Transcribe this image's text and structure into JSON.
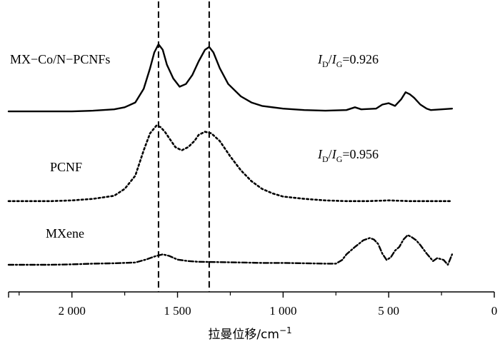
{
  "chart_data": {
    "type": "line",
    "title": "",
    "xlabel": "拉曼位移/cm",
    "xlabel_sup": "−1",
    "ylabel": "",
    "xlim": [
      2300,
      0
    ],
    "x_reversed": true,
    "xticks": [
      {
        "value": 2000,
        "label": "2 000"
      },
      {
        "value": 1500,
        "label": "1 500"
      },
      {
        "value": 1000,
        "label": "1 000"
      },
      {
        "value": 500,
        "label": "5 00"
      },
      {
        "value": 0,
        "label": "0"
      }
    ],
    "reference_lines": [
      1590,
      1350
    ],
    "grid": false,
    "annotations": [
      {
        "series": "MX−Co/N−PCNFs",
        "prefix": "I",
        "sub1": "D",
        "slash": "/",
        "prefix2": "I",
        "sub2": "G",
        "text": "=0.926"
      },
      {
        "series": "PCNF",
        "prefix": "I",
        "sub1": "D",
        "slash": "/",
        "prefix2": "I",
        "sub2": "G",
        "text": "=0.956"
      }
    ],
    "series": [
      {
        "name": "MX−Co/N−PCNFs",
        "style": "solid",
        "points": [
          [
            2300,
            0.02
          ],
          [
            2200,
            0.02
          ],
          [
            2100,
            0.02
          ],
          [
            2000,
            0.02
          ],
          [
            1900,
            0.03
          ],
          [
            1800,
            0.05
          ],
          [
            1750,
            0.08
          ],
          [
            1700,
            0.15
          ],
          [
            1660,
            0.35
          ],
          [
            1630,
            0.65
          ],
          [
            1610,
            0.88
          ],
          [
            1590,
            1.0
          ],
          [
            1570,
            0.92
          ],
          [
            1550,
            0.7
          ],
          [
            1520,
            0.5
          ],
          [
            1490,
            0.38
          ],
          [
            1460,
            0.42
          ],
          [
            1430,
            0.55
          ],
          [
            1400,
            0.75
          ],
          [
            1370,
            0.92
          ],
          [
            1350,
            0.96
          ],
          [
            1330,
            0.88
          ],
          [
            1300,
            0.65
          ],
          [
            1260,
            0.42
          ],
          [
            1200,
            0.24
          ],
          [
            1150,
            0.15
          ],
          [
            1100,
            0.1
          ],
          [
            1000,
            0.06
          ],
          [
            900,
            0.04
          ],
          [
            800,
            0.03
          ],
          [
            700,
            0.04
          ],
          [
            660,
            0.08
          ],
          [
            630,
            0.05
          ],
          [
            560,
            0.06
          ],
          [
            530,
            0.12
          ],
          [
            500,
            0.14
          ],
          [
            470,
            0.1
          ],
          [
            440,
            0.2
          ],
          [
            420,
            0.3
          ],
          [
            400,
            0.27
          ],
          [
            380,
            0.22
          ],
          [
            350,
            0.12
          ],
          [
            320,
            0.06
          ],
          [
            300,
            0.04
          ],
          [
            250,
            0.05
          ],
          [
            200,
            0.06
          ]
        ]
      },
      {
        "name": "PCNF",
        "style": "dotted",
        "points": [
          [
            2300,
            0.02
          ],
          [
            2200,
            0.02
          ],
          [
            2100,
            0.02
          ],
          [
            2000,
            0.03
          ],
          [
            1900,
            0.05
          ],
          [
            1800,
            0.09
          ],
          [
            1750,
            0.18
          ],
          [
            1700,
            0.35
          ],
          [
            1660,
            0.68
          ],
          [
            1630,
            0.9
          ],
          [
            1600,
            1.0
          ],
          [
            1580,
            0.98
          ],
          [
            1560,
            0.92
          ],
          [
            1540,
            0.84
          ],
          [
            1510,
            0.72
          ],
          [
            1480,
            0.68
          ],
          [
            1450,
            0.72
          ],
          [
            1420,
            0.8
          ],
          [
            1400,
            0.88
          ],
          [
            1370,
            0.92
          ],
          [
            1340,
            0.9
          ],
          [
            1300,
            0.8
          ],
          [
            1250,
            0.6
          ],
          [
            1200,
            0.42
          ],
          [
            1150,
            0.28
          ],
          [
            1100,
            0.18
          ],
          [
            1050,
            0.12
          ],
          [
            1000,
            0.08
          ],
          [
            900,
            0.05
          ],
          [
            800,
            0.03
          ],
          [
            700,
            0.02
          ],
          [
            600,
            0.02
          ],
          [
            500,
            0.03
          ],
          [
            400,
            0.02
          ],
          [
            300,
            0.02
          ],
          [
            200,
            0.02
          ]
        ]
      },
      {
        "name": "MXene",
        "style": "dashdot",
        "points": [
          [
            2300,
            0.02
          ],
          [
            2200,
            0.02
          ],
          [
            2100,
            0.02
          ],
          [
            2000,
            0.03
          ],
          [
            1900,
            0.05
          ],
          [
            1800,
            0.06
          ],
          [
            1700,
            0.08
          ],
          [
            1650,
            0.16
          ],
          [
            1600,
            0.26
          ],
          [
            1570,
            0.3
          ],
          [
            1540,
            0.26
          ],
          [
            1500,
            0.16
          ],
          [
            1450,
            0.12
          ],
          [
            1400,
            0.1
          ],
          [
            1300,
            0.09
          ],
          [
            1200,
            0.08
          ],
          [
            1100,
            0.07
          ],
          [
            1000,
            0.07
          ],
          [
            900,
            0.06
          ],
          [
            800,
            0.05
          ],
          [
            750,
            0.05
          ],
          [
            720,
            0.15
          ],
          [
            700,
            0.3
          ],
          [
            660,
            0.5
          ],
          [
            620,
            0.68
          ],
          [
            590,
            0.74
          ],
          [
            570,
            0.7
          ],
          [
            550,
            0.58
          ],
          [
            530,
            0.32
          ],
          [
            510,
            0.15
          ],
          [
            490,
            0.22
          ],
          [
            470,
            0.4
          ],
          [
            450,
            0.5
          ],
          [
            430,
            0.7
          ],
          [
            410,
            0.82
          ],
          [
            390,
            0.76
          ],
          [
            370,
            0.68
          ],
          [
            350,
            0.55
          ],
          [
            320,
            0.32
          ],
          [
            290,
            0.12
          ],
          [
            270,
            0.2
          ],
          [
            240,
            0.15
          ],
          [
            220,
            0.02
          ],
          [
            200,
            0.3
          ]
        ]
      }
    ]
  }
}
